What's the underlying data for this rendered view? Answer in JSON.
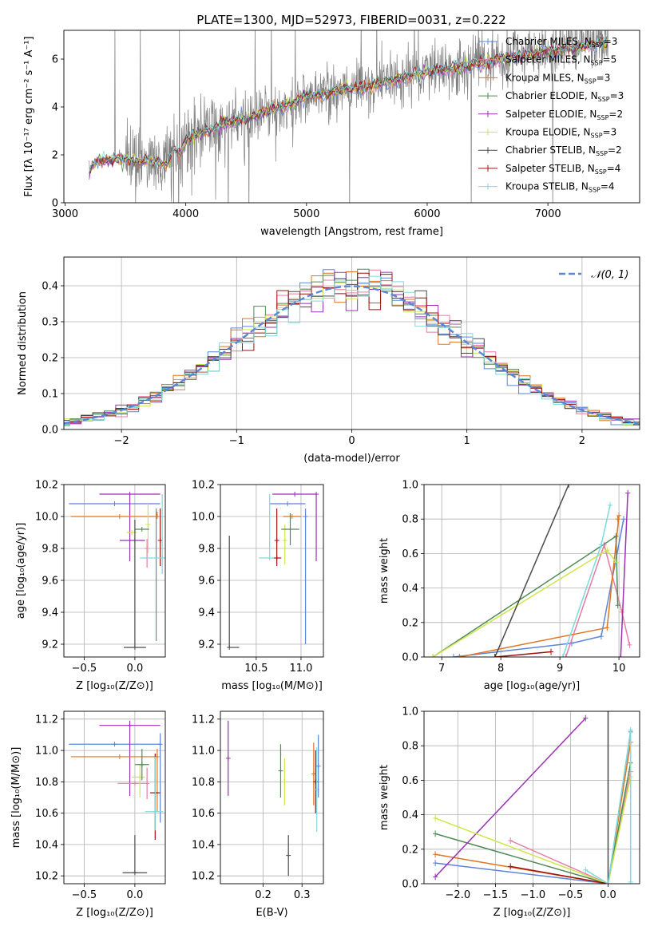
{
  "figure_title": "PLATE=1300, MJD=52973, FIBERID=0031, z=0.222",
  "series_styles": [
    {
      "name": "Chabrier MILES",
      "nssp": "3",
      "color": "#5b85d9"
    },
    {
      "name": "Salpeter MILES",
      "nssp": "5",
      "color": "#e87ba4"
    },
    {
      "name": "Kroupa MILES",
      "nssp": "3",
      "color": "#e0741f"
    },
    {
      "name": "Chabrier ELODIE",
      "nssp": "3",
      "color": "#4f8a57"
    },
    {
      "name": "Salpeter ELODIE",
      "nssp": "2",
      "color": "#9b30b3"
    },
    {
      "name": "Kroupa ELODIE",
      "nssp": "3",
      "color": "#cde64a"
    },
    {
      "name": "Chabrier STELIB",
      "nssp": "2",
      "color": "#4a4a4a"
    },
    {
      "name": "Salpeter STELIB",
      "nssp": "4",
      "color": "#a01010"
    },
    {
      "name": "Kroupa STELIB",
      "nssp": "4",
      "color": "#7fd9dd"
    }
  ],
  "chart_data": [
    {
      "id": "spectrum",
      "type": "line",
      "xlabel": "wavelength [Angstrom, rest frame]",
      "ylabel": "Flux [fλ 10⁻¹⁷ erg cm⁻² s⁻¹ A⁻¹]",
      "xlim": [
        2990,
        7760
      ],
      "ylim": [
        0,
        7.2
      ],
      "xticks": [
        3000,
        4000,
        5000,
        6000,
        7000
      ],
      "yticks": [
        0,
        2,
        4,
        6
      ],
      "data_color": "#808080",
      "continuum": {
        "x": [
          3200,
          3260,
          3400,
          3500,
          3600,
          3700,
          3800,
          3850,
          3900,
          3950,
          4000,
          4100,
          4200,
          4300,
          4400,
          4500,
          4600,
          4700,
          4800,
          4900,
          5000,
          5100,
          5200,
          5300,
          5400,
          5500,
          5600,
          5700,
          5800,
          5900,
          6000,
          6100,
          6200,
          6300,
          6400,
          6500,
          6600,
          6700,
          6800,
          6900,
          7000,
          7100,
          7200,
          7300,
          7400,
          7500
        ],
        "y": [
          1.3,
          1.75,
          1.8,
          1.85,
          1.7,
          1.8,
          1.6,
          1.6,
          2.3,
          2.0,
          2.6,
          2.9,
          3.0,
          3.25,
          3.45,
          3.5,
          3.65,
          3.9,
          4.0,
          4.15,
          4.45,
          4.5,
          4.6,
          4.7,
          4.8,
          4.85,
          4.95,
          5.1,
          5.2,
          5.35,
          5.45,
          5.55,
          5.6,
          5.7,
          5.8,
          5.9,
          6.0,
          6.05,
          6.15,
          6.25,
          6.3,
          6.4,
          6.45,
          6.5,
          6.6,
          6.7
        ]
      },
      "legend_position": "right"
    },
    {
      "id": "residuals",
      "type": "step",
      "xlabel": "(data-model)/error",
      "ylabel": "Normed distribution",
      "xlim": [
        -2.5,
        2.5
      ],
      "ylim": [
        0,
        0.48
      ],
      "xticks": [
        -2,
        -1,
        0,
        1,
        2
      ],
      "yticks": [
        0.0,
        0.1,
        0.2,
        0.3,
        0.4
      ],
      "reference_label": "𝒩(0, 1)",
      "reference_color": "#5b85d9",
      "bin_width": 0.1,
      "legend_position": "top-right",
      "grid": true
    },
    {
      "id": "age_vs_Z",
      "type": "errorbar",
      "xlabel": "Z [log₁₀(Z/Z⊙)]",
      "ylabel": "age  [log₁₀(age/yr)]",
      "xlim": [
        -0.7,
        0.3
      ],
      "ylim": [
        9.12,
        10.2
      ],
      "xticks": [
        -0.5,
        0.0
      ],
      "xticklabels": [
        "−0.5",
        "0.0"
      ],
      "yticks": [
        9.2,
        9.4,
        9.6,
        9.8,
        10.0,
        10.2
      ],
      "points": [
        {
          "s": 0,
          "x": -0.2,
          "y": 10.08,
          "xerr": [
            0.45,
            0.45
          ],
          "yerr": [
            0.0,
            0.0
          ]
        },
        {
          "s": 0,
          "x": 0.21,
          "y": 10.0,
          "xerr": [
            0.0,
            0.0
          ],
          "yerr": [
            0.78,
            0.05
          ]
        },
        {
          "s": 4,
          "x": -0.05,
          "y": 10.14,
          "xerr": [
            0.3,
            0.3
          ],
          "yerr": [
            0.42,
            0.0
          ]
        },
        {
          "s": 4,
          "x": 0.0,
          "y": 9.85,
          "xerr": [
            0.15,
            0.1
          ],
          "yerr": [
            0.0,
            0.0
          ]
        },
        {
          "s": 2,
          "x": -0.15,
          "y": 10.0,
          "xerr": [
            0.48,
            0.38
          ],
          "yerr": [
            0.0,
            0.0
          ]
        },
        {
          "s": 2,
          "x": 0.22,
          "y": 10.0,
          "xerr": [
            0.0,
            0.0
          ],
          "yerr": [
            0.0,
            0.03
          ]
        },
        {
          "s": 7,
          "x": 0.25,
          "y": 9.85,
          "xerr": [
            0.0,
            0.0
          ],
          "yerr": [
            0.16,
            0.2
          ]
        },
        {
          "s": 1,
          "x": 0.12,
          "y": 9.8,
          "xerr": [
            0.0,
            0.0
          ],
          "yerr": [
            0.12,
            0.06
          ]
        },
        {
          "s": 5,
          "x": -0.03,
          "y": 9.9,
          "xerr": [
            0.05,
            0.05
          ],
          "yerr": [
            0.0,
            0.0
          ]
        },
        {
          "s": 5,
          "x": 0.13,
          "y": 9.95,
          "xerr": [
            0.0,
            0.0
          ],
          "yerr": [
            0.18,
            0.13
          ]
        },
        {
          "s": 3,
          "x": 0.07,
          "y": 9.92,
          "xerr": [
            0.07,
            0.07
          ],
          "yerr": [
            0.0,
            0.0
          ]
        },
        {
          "s": 8,
          "x": 0.27,
          "y": 9.74,
          "xerr": [
            0.22,
            0.05
          ],
          "yerr": [
            0.1,
            0.4
          ]
        },
        {
          "s": 6,
          "x": 0.0,
          "y": 9.18,
          "xerr": [
            0.11,
            0.11
          ],
          "yerr": [
            0.0,
            0.8
          ]
        }
      ],
      "grid": true
    },
    {
      "id": "age_vs_mass",
      "type": "errorbar",
      "xlabel": "mass [log₁₀(M/M⊙)]",
      "xlim": [
        10.1,
        11.25
      ],
      "ylim": [
        9.12,
        10.2
      ],
      "xticks": [
        10.5,
        11.0
      ],
      "yticks": [
        9.2,
        9.4,
        9.6,
        9.8,
        10.0,
        10.2
      ],
      "points": [
        {
          "s": 4,
          "x": 10.93,
          "y": 10.14,
          "xerr": [
            0.25,
            0.25
          ],
          "yerr": [
            0.0,
            0.0
          ]
        },
        {
          "s": 4,
          "x": 11.17,
          "y": 10.14,
          "xerr": [
            0.0,
            0.0
          ],
          "yerr": [
            0.42,
            0.0
          ]
        },
        {
          "s": 0,
          "x": 10.85,
          "y": 10.08,
          "xerr": [
            0.2,
            0.2
          ],
          "yerr": [
            0.0,
            0.0
          ]
        },
        {
          "s": 0,
          "x": 11.05,
          "y": 10.0,
          "xerr": [
            0.0,
            0.0
          ],
          "yerr": [
            0.8,
            0.05
          ]
        },
        {
          "s": 2,
          "x": 10.9,
          "y": 10.0,
          "xerr": [
            0.1,
            0.1
          ],
          "yerr": [
            0.0,
            0.0
          ]
        },
        {
          "s": 7,
          "x": 10.73,
          "y": 9.74,
          "xerr": [
            0.05,
            0.05
          ],
          "yerr": [
            0.0,
            0.0
          ]
        },
        {
          "s": 7,
          "x": 10.73,
          "y": 9.85,
          "xerr": [
            0.0,
            0.0
          ],
          "yerr": [
            0.16,
            0.2
          ]
        },
        {
          "s": 8,
          "x": 10.65,
          "y": 9.74,
          "xerr": [
            0.12,
            0.05
          ],
          "yerr": [
            0.0,
            0.4
          ]
        },
        {
          "s": 5,
          "x": 10.82,
          "y": 9.85,
          "xerr": [
            0.0,
            0.0
          ],
          "yerr": [
            0.15,
            0.1
          ]
        },
        {
          "s": 3,
          "x": 10.88,
          "y": 9.92,
          "xerr": [
            0.1,
            0.1
          ],
          "yerr": [
            0.1,
            0.1
          ]
        },
        {
          "s": 6,
          "x": 10.2,
          "y": 9.18,
          "xerr": [
            0.0,
            0.11
          ],
          "yerr": [
            0.0,
            0.7
          ]
        }
      ],
      "grid": true
    },
    {
      "id": "massweight_vs_age",
      "type": "line",
      "xlabel": "age  [log₁₀(age/yr)]",
      "ylabel": "mass weight",
      "xlim": [
        6.7,
        10.35
      ],
      "ylim": [
        0,
        1.0
      ],
      "xticks": [
        7,
        8,
        9,
        10
      ],
      "yticks": [
        0.0,
        0.2,
        0.4,
        0.6,
        0.8,
        1.0
      ],
      "lines": [
        {
          "s": 0,
          "x": [
            7.2,
            9.2,
            9.7,
            10.08
          ],
          "y": [
            0.0,
            0.08,
            0.12,
            0.8
          ]
        },
        {
          "s": 1,
          "x": [
            9.1,
            9.75,
            10.05,
            10.18
          ],
          "y": [
            0.0,
            0.65,
            0.26,
            0.07
          ]
        },
        {
          "s": 2,
          "x": [
            7.3,
            9.8,
            10.0,
            9.98
          ],
          "y": [
            0.0,
            0.17,
            0.82,
            0.8
          ]
        },
        {
          "s": 3,
          "x": [
            6.85,
            9.95,
            9.98
          ],
          "y": [
            0.0,
            0.7,
            0.3
          ]
        },
        {
          "s": 4,
          "x": [
            10.03,
            10.15
          ],
          "y": [
            0.0,
            0.95
          ]
        },
        {
          "s": 5,
          "x": [
            6.85,
            9.8,
            9.95
          ],
          "y": [
            0.0,
            0.62,
            0.55
          ]
        },
        {
          "s": 6,
          "x": [
            7.9,
            9.15
          ],
          "y": [
            0.0,
            1.0
          ]
        },
        {
          "s": 7,
          "x": [
            7.9,
            8.85
          ],
          "y": [
            0.0,
            0.03
          ]
        },
        {
          "s": 8,
          "x": [
            9.05,
            9.7,
            9.85
          ],
          "y": [
            0.0,
            0.65,
            0.88
          ]
        }
      ],
      "grid": true
    },
    {
      "id": "mass_vs_Z",
      "type": "errorbar",
      "xlabel": "Z [log₁₀(Z/Z⊙)]",
      "ylabel": "mass [log₁₀(M/M⊙)]",
      "xlim": [
        -0.7,
        0.3
      ],
      "ylim": [
        10.15,
        11.25
      ],
      "xticks": [
        -0.5,
        0.0
      ],
      "xticklabels": [
        "−0.5",
        "0.0"
      ],
      "yticks": [
        10.2,
        10.4,
        10.6,
        10.8,
        11.0,
        11.2
      ],
      "points": [
        {
          "s": 0,
          "x": -0.2,
          "y": 11.04,
          "xerr": [
            0.45,
            0.45
          ],
          "yerr": [
            0.0,
            0.0
          ]
        },
        {
          "s": 0,
          "x": 0.25,
          "y": 11.04,
          "xerr": [
            0.0,
            0.0
          ],
          "yerr": [
            0.5,
            0.07
          ]
        },
        {
          "s": 4,
          "x": -0.05,
          "y": 11.16,
          "xerr": [
            0.3,
            0.3
          ],
          "yerr": [
            0.45,
            0.03
          ]
        },
        {
          "s": 2,
          "x": -0.15,
          "y": 10.96,
          "xerr": [
            0.48,
            0.38
          ],
          "yerr": [
            0.0,
            0.0
          ]
        },
        {
          "s": 2,
          "x": 0.22,
          "y": 10.96,
          "xerr": [
            0.0,
            0.0
          ],
          "yerr": [
            0.35,
            0.05
          ]
        },
        {
          "s": 1,
          "x": 0.0,
          "y": 10.79,
          "xerr": [
            0.17,
            0.1
          ],
          "yerr": [
            0.0,
            0.0
          ]
        },
        {
          "s": 1,
          "x": 0.12,
          "y": 10.79,
          "xerr": [
            0.0,
            0.0
          ],
          "yerr": [
            0.1,
            0.1
          ]
        },
        {
          "s": 7,
          "x": 0.2,
          "y": 10.73,
          "xerr": [
            0.05,
            0.05
          ],
          "yerr": [
            0.3,
            0.25
          ]
        },
        {
          "s": 5,
          "x": 0.05,
          "y": 10.83,
          "xerr": [
            0.08,
            0.05
          ],
          "yerr": [
            0.13,
            0.08
          ]
        },
        {
          "s": 3,
          "x": 0.07,
          "y": 10.91,
          "xerr": [
            0.07,
            0.07
          ],
          "yerr": [
            0.1,
            0.1
          ]
        },
        {
          "s": 8,
          "x": 0.2,
          "y": 10.61,
          "xerr": [
            0.1,
            0.08
          ],
          "yerr": [
            0.12,
            0.35
          ]
        },
        {
          "s": 6,
          "x": 0.0,
          "y": 10.22,
          "xerr": [
            0.12,
            0.12
          ],
          "yerr": [
            0.0,
            0.24
          ]
        }
      ],
      "grid": true
    },
    {
      "id": "mass_vs_ebv",
      "type": "errorbar",
      "xlabel": "E(B-V)",
      "xlim": [
        0.09,
        0.355
      ],
      "ylim": [
        10.15,
        11.25
      ],
      "xticks": [
        0.2,
        0.3
      ],
      "yticks": [
        10.2,
        10.4,
        10.6,
        10.8,
        11.0,
        11.2
      ],
      "points": [
        {
          "s": 4,
          "x": 0.11,
          "y": 10.95,
          "xerr": [
            0.0,
            0.0
          ],
          "yerr": [
            0.24,
            0.24
          ]
        },
        {
          "s": 3,
          "x": 0.245,
          "y": 10.87,
          "xerr": [
            0.0,
            0.0
          ],
          "yerr": [
            0.17,
            0.17
          ]
        },
        {
          "s": 5,
          "x": 0.255,
          "y": 10.8,
          "xerr": [
            0.0,
            0.0
          ],
          "yerr": [
            0.15,
            0.15
          ]
        },
        {
          "s": 6,
          "x": 0.265,
          "y": 10.33,
          "xerr": [
            0.0,
            0.0
          ],
          "yerr": [
            0.13,
            0.13
          ]
        },
        {
          "s": 2,
          "x": 0.33,
          "y": 10.85,
          "xerr": [
            0.0,
            0.0
          ],
          "yerr": [
            0.2,
            0.2
          ]
        },
        {
          "s": 7,
          "x": 0.335,
          "y": 10.8,
          "xerr": [
            0.0,
            0.0
          ],
          "yerr": [
            0.2,
            0.2
          ]
        },
        {
          "s": 8,
          "x": 0.338,
          "y": 10.75,
          "xerr": [
            0.0,
            0.0
          ],
          "yerr": [
            0.27,
            0.27
          ]
        },
        {
          "s": 0,
          "x": 0.342,
          "y": 10.9,
          "xerr": [
            0.0,
            0.0
          ],
          "yerr": [
            0.2,
            0.2
          ]
        }
      ],
      "grid": true
    },
    {
      "id": "massweight_vs_Z",
      "type": "line",
      "xlabel": "Z [log₁₀(Z/Z⊙)]",
      "ylabel": "mass weight",
      "xlim": [
        -2.45,
        0.42
      ],
      "ylim": [
        0,
        1.0
      ],
      "xticks": [
        -2.0,
        -1.5,
        -1.0,
        -0.5,
        0.0
      ],
      "xticklabels": [
        "−2.0",
        "−1.5",
        "−1.0",
        "−0.5",
        "0.0"
      ],
      "yticks": [
        0.0,
        0.2,
        0.4,
        0.6,
        0.8,
        1.0
      ],
      "lines": [
        {
          "s": 0,
          "x": [
            -2.3,
            0.0,
            0.3
          ],
          "y": [
            0.12,
            0.0,
            0.88
          ]
        },
        {
          "s": 1,
          "x": [
            -1.3,
            0.0,
            0.3
          ],
          "y": [
            0.25,
            0.0,
            0.65
          ]
        },
        {
          "s": 2,
          "x": [
            -2.3,
            0.0,
            0.3
          ],
          "y": [
            0.17,
            0.0,
            0.82
          ]
        },
        {
          "s": 3,
          "x": [
            -2.3,
            0.0,
            0.3
          ],
          "y": [
            0.29,
            0.0,
            0.7
          ]
        },
        {
          "s": 4,
          "x": [
            -2.3,
            -0.3
          ],
          "y": [
            0.04,
            0.96
          ]
        },
        {
          "s": 5,
          "x": [
            -2.3,
            0.0,
            0.3
          ],
          "y": [
            0.38,
            0.0,
            0.62
          ]
        },
        {
          "s": 6,
          "x": [
            0.0,
            0.0
          ],
          "y": [
            0.0,
            1.0
          ]
        },
        {
          "s": 7,
          "x": [
            -1.3,
            0.0
          ],
          "y": [
            0.1,
            0.0
          ]
        },
        {
          "s": 8,
          "x": [
            -0.3,
            0.0,
            0.3,
            0.3
          ],
          "y": [
            0.08,
            0.0,
            0.89,
            0.01
          ]
        }
      ],
      "grid": true
    }
  ]
}
